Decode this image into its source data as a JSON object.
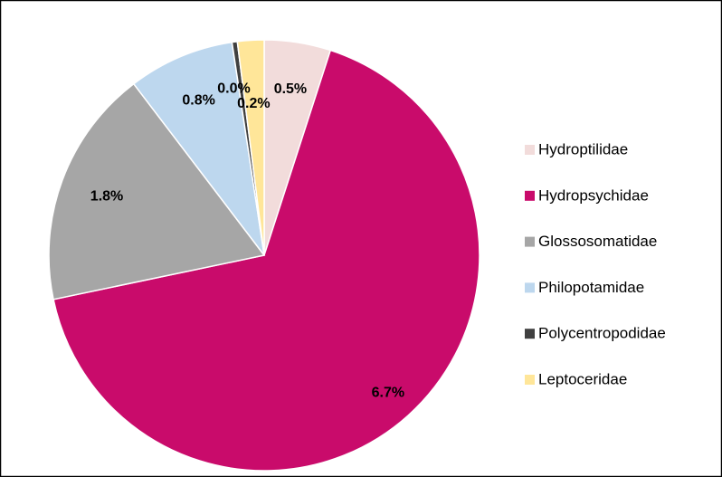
{
  "chart_data": {
    "type": "pie",
    "categories": [
      "Hydroptilidae",
      "Hydropsychidae",
      "Glossosomatidae",
      "Philopotamidae",
      "Polycentropodidae",
      "Leptoceridae"
    ],
    "values": [
      0.5,
      6.7,
      1.8,
      0.8,
      0.04,
      0.2
    ],
    "value_labels": [
      "0.5%",
      "6.7%",
      "1.8%",
      "0.8%",
      "0.0%",
      "0.2%"
    ],
    "colors": [
      "#f2dcdb",
      "#c90b6b",
      "#a6a6a6",
      "#bdd7ee",
      "#404040",
      "#ffe699"
    ],
    "legend": "right"
  }
}
